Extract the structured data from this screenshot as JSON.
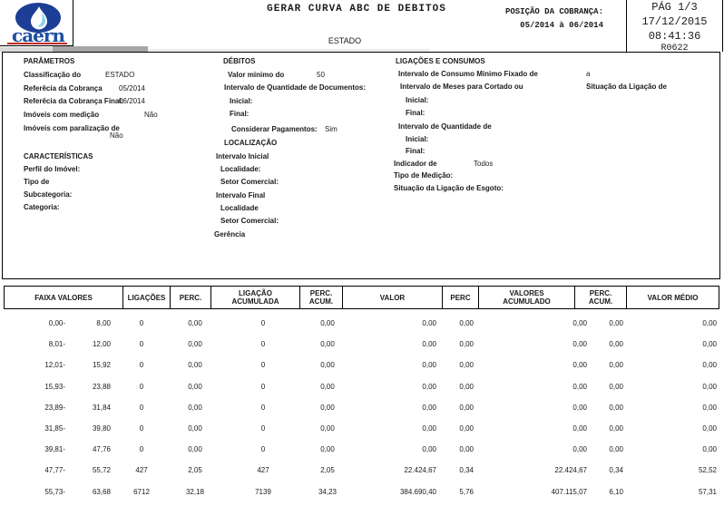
{
  "colors": {
    "logo_blue": "#1c3e94",
    "logo_text_blue": "#1e4fa0",
    "logo_red": "#c22a21",
    "drop_blue": "#8fd0ec"
  },
  "header": {
    "logo_text": "caern",
    "title": "GERAR CURVA ABC DE DEBITOS",
    "subtitle": "ESTADO",
    "posicao": {
      "label": "POSIÇÃO DA COBRANÇA:",
      "value": "05/2014 à 06/2014"
    },
    "pagebox": {
      "page": "PÁG 1/3",
      "date": "17/12/2015",
      "time": "08:41:36",
      "code": "R0622"
    }
  },
  "parametros": {
    "title": "PARÂMETROS",
    "classificacao_label": "Classificação do",
    "classificacao_value": "ESTADO",
    "referencia_label": "Referêcia da Cobrança",
    "referencia_value": "05/2014",
    "referencia_final_label": "Referêcia da Cobrança Final:",
    "referencia_final_value": "06/2014",
    "imoveis_medicao_label": "Imóveis com medição",
    "imoveis_medicao_value": "Não",
    "imoveis_paralizacao_label": "Imóveis com paralização de",
    "imoveis_paralizacao_value": "Não"
  },
  "caracteristicas": {
    "title": "CARACTERÍSTICAS",
    "perfil_label": "Perfil do Imóvel:",
    "tipo_label": "Tipo de",
    "subcategoria_label": "Subcategoria:",
    "categoria_label": "Categoria:"
  },
  "debitos": {
    "title": "DÉBITOS",
    "valor_minimo_label": "Valor minimo do",
    "valor_minimo_value": "50",
    "intervalo_docs_label": "Intervalo de Quantidade de Documentos:",
    "inicial_label": "Inicial:",
    "final_label": "Final:",
    "considerar_label": "Considerar Pagamentos:",
    "considerar_value": "Sim"
  },
  "localizacao": {
    "title": "LOCALIZAÇÃO",
    "intervalo_inicial_label": "Intervalo Inicial",
    "localidade_label": "Localidade:",
    "setor_label": "Setor Comercial:",
    "intervalo_final_label": "Intervalo Final",
    "localidade2_label": "Localidade",
    "setor2_label": "Setor Comercial:",
    "gerencia_label": "Gerência"
  },
  "ligacoes": {
    "title": "LIGAÇÕES E CONSUMOS",
    "consumo_label": "Intervalo de Consumo Minimo Fixado de",
    "consumo_value": "a",
    "meses_label": "Intervalo de Meses para Cortado ou",
    "situacao_label": "Situação da Ligação de",
    "inicial1_label": "Inicial:",
    "final1_label": "Final:",
    "quantidade_label": "Intervalo de Quantidade de",
    "inicial2_label": "Inicial:",
    "final2_label": "Final:",
    "indicador_label": "Indicador de",
    "indicador_value": "Todos",
    "tipo_medicao_label": "Tipo de Medição:",
    "situacao_esgoto_label": "Situação da Ligação de Esgoto:"
  },
  "table": {
    "columns": [
      "FAIXA VALORES",
      "LIGAÇÕES",
      "PERC.",
      "LIGAÇÃO\nACUMULADA",
      "PERC.\nACUM.",
      "VALOR",
      "PERC",
      "VALORES\nACUMULADO",
      "PERC.\nACUM.",
      "VALOR MÉDIO"
    ],
    "rows": [
      [
        "0,00-",
        "8,00",
        "0",
        "0,00",
        "0",
        "0,00",
        "0,00",
        "0,00",
        "0,00",
        "0,00",
        "0,00"
      ],
      [
        "8,01-",
        "12,00",
        "0",
        "0,00",
        "0",
        "0,00",
        "0,00",
        "0,00",
        "0,00",
        "0,00",
        "0,00"
      ],
      [
        "12,01-",
        "15,92",
        "0",
        "0,00",
        "0",
        "0,00",
        "0,00",
        "0,00",
        "0,00",
        "0,00",
        "0,00"
      ],
      [
        "15,93-",
        "23,88",
        "0",
        "0,00",
        "0",
        "0,00",
        "0,00",
        "0,00",
        "0,00",
        "0,00",
        "0,00"
      ],
      [
        "23,89-",
        "31,84",
        "0",
        "0,00",
        "0",
        "0,00",
        "0,00",
        "0,00",
        "0,00",
        "0,00",
        "0,00"
      ],
      [
        "31,85-",
        "39,80",
        "0",
        "0,00",
        "0",
        "0,00",
        "0,00",
        "0,00",
        "0,00",
        "0,00",
        "0,00"
      ],
      [
        "39,81-",
        "47,76",
        "0",
        "0,00",
        "0",
        "0,00",
        "0,00",
        "0,00",
        "0,00",
        "0,00",
        "0,00"
      ],
      [
        "47,77-",
        "55,72",
        "427",
        "2,05",
        "427",
        "2,05",
        "22.424,67",
        "0,34",
        "22.424,67",
        "0,34",
        "52,52"
      ],
      [
        "55,73-",
        "63,68",
        "6712",
        "32,18",
        "7139",
        "34,23",
        "384.690,40",
        "5,76",
        "407.115,07",
        "6,10",
        "57,31"
      ]
    ]
  }
}
